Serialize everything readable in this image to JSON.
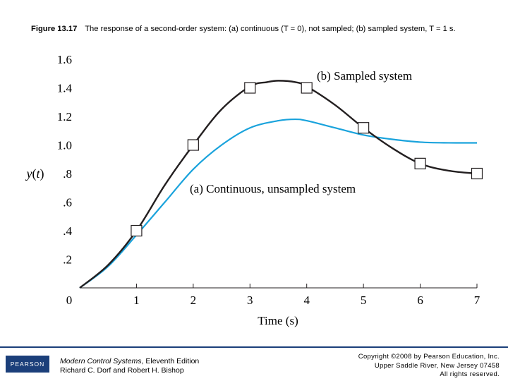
{
  "caption": {
    "figure_label": "Figure 13.17",
    "text": "The response of a second-order system: (a) continuous (T = 0), not sampled; (b) sampled system, T = 1 s."
  },
  "chart_data": {
    "type": "line",
    "xlabel": "Time (s)",
    "ylabel": "y(t)",
    "xlim": [
      0,
      7
    ],
    "ylim": [
      0,
      1.6
    ],
    "x_ticks": [
      {
        "v": 0,
        "label": "0"
      },
      {
        "v": 1,
        "label": "1"
      },
      {
        "v": 2,
        "label": "2"
      },
      {
        "v": 3,
        "label": "3"
      },
      {
        "v": 4,
        "label": "4"
      },
      {
        "v": 5,
        "label": "5"
      },
      {
        "v": 6,
        "label": "6"
      },
      {
        "v": 7,
        "label": "7"
      }
    ],
    "y_ticks": [
      {
        "v": 0.2,
        "label": ".2"
      },
      {
        "v": 0.4,
        "label": ".4"
      },
      {
        "v": 0.6,
        "label": ".6"
      },
      {
        "v": 0.8,
        "label": ".8"
      },
      {
        "v": 1.0,
        "label": "1.0"
      },
      {
        "v": 1.2,
        "label": "1.2"
      },
      {
        "v": 1.4,
        "label": "1.4"
      },
      {
        "v": 1.6,
        "label": "1.6"
      }
    ],
    "grid": false,
    "series": [
      {
        "name": "(a) Continuous, unsampled system",
        "color": "#1aa3dc",
        "x": [
          0,
          0.5,
          1.0,
          1.5,
          2.0,
          2.5,
          3.0,
          3.5,
          3.8,
          4.0,
          4.5,
          5.0,
          5.5,
          6.0,
          6.5,
          7.0
        ],
        "y": [
          0,
          0.15,
          0.37,
          0.6,
          0.83,
          1.0,
          1.12,
          1.17,
          1.18,
          1.17,
          1.12,
          1.07,
          1.04,
          1.02,
          1.015,
          1.015
        ]
      },
      {
        "name": "(b) Sampled system",
        "color": "#231f20",
        "x": [
          0,
          0.5,
          1.0,
          1.5,
          2.0,
          2.5,
          3.0,
          3.3,
          3.5,
          3.8,
          4.0,
          4.5,
          5.0,
          5.5,
          6.0,
          6.5,
          7.0
        ],
        "y": [
          0,
          0.16,
          0.4,
          0.72,
          1.0,
          1.25,
          1.41,
          1.44,
          1.45,
          1.44,
          1.41,
          1.28,
          1.12,
          0.98,
          0.87,
          0.82,
          0.8
        ]
      }
    ],
    "samples": {
      "x": [
        1,
        2,
        3,
        4,
        5,
        6,
        7
      ],
      "y": [
        0.4,
        1.0,
        1.4,
        1.4,
        1.12,
        0.87,
        0.8
      ]
    }
  },
  "footer": {
    "logo_text": "PEARSON",
    "book_title": "Modern Control Systems",
    "book_edition": ", Eleventh Edition",
    "authors": "Richard C. Dorf and Robert H. Bishop",
    "copyright_line1": "Copyright ©2008 by Pearson Education, Inc.",
    "copyright_line2": "Upper Saddle River, New Jersey 07458",
    "copyright_line3": "All rights reserved."
  },
  "colors": {
    "brand": "#1b3f7a",
    "axis": "#231f20"
  }
}
